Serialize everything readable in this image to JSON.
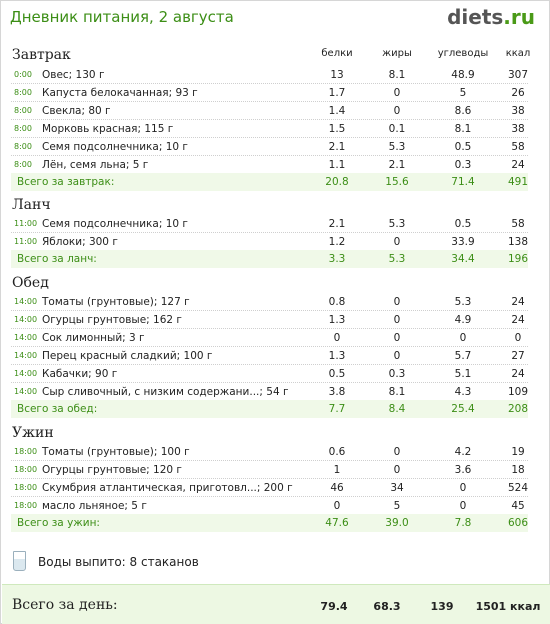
{
  "header": {
    "title": "Дневник питания, 2 августа",
    "logo_main": "diets",
    "logo_tld": ".ru"
  },
  "columns": {
    "protein": "белки",
    "fat": "жиры",
    "carbs": "углеводы",
    "kcal": "ккал"
  },
  "breakfast": {
    "title": "Завтрак",
    "items": [
      {
        "time": "0:00",
        "name": "Овес; 130 г",
        "protein": "13",
        "fat": "8.1",
        "carbs": "48.9",
        "kcal": "307"
      },
      {
        "time": "8:00",
        "name": "Капуста белокачанная; 93 г",
        "protein": "1.7",
        "fat": "0",
        "carbs": "5",
        "kcal": "26"
      },
      {
        "time": "8:00",
        "name": "Свекла; 80 г",
        "protein": "1.4",
        "fat": "0",
        "carbs": "8.6",
        "kcal": "38"
      },
      {
        "time": "8:00",
        "name": "Морковь красная; 115 г",
        "protein": "1.5",
        "fat": "0.1",
        "carbs": "8.1",
        "kcal": "38"
      },
      {
        "time": "8:00",
        "name": "Семя подсолнечника; 10 г",
        "protein": "2.1",
        "fat": "5.3",
        "carbs": "0.5",
        "kcal": "58"
      },
      {
        "time": "8:00",
        "name": "Лён, семя льна; 5 г",
        "protein": "1.1",
        "fat": "2.1",
        "carbs": "0.3",
        "kcal": "24"
      }
    ],
    "total": {
      "label": "Всего за завтрак:",
      "protein": "20.8",
      "fat": "15.6",
      "carbs": "71.4",
      "kcal": "491"
    }
  },
  "lunch": {
    "title": "Ланч",
    "items": [
      {
        "time": "11:00",
        "name": "Семя подсолнечника; 10 г",
        "protein": "2.1",
        "fat": "5.3",
        "carbs": "0.5",
        "kcal": "58"
      },
      {
        "time": "11:00",
        "name": "Яблоки; 300 г",
        "protein": "1.2",
        "fat": "0",
        "carbs": "33.9",
        "kcal": "138"
      }
    ],
    "total": {
      "label": "Всего за ланч:",
      "protein": "3.3",
      "fat": "5.3",
      "carbs": "34.4",
      "kcal": "196"
    }
  },
  "dinner": {
    "title": "Обед",
    "items": [
      {
        "time": "14:00",
        "name": "Томаты (грунтовые); 127 г",
        "protein": "0.8",
        "fat": "0",
        "carbs": "5.3",
        "kcal": "24"
      },
      {
        "time": "14:00",
        "name": "Огурцы грунтовые; 162 г",
        "protein": "1.3",
        "fat": "0",
        "carbs": "4.9",
        "kcal": "24"
      },
      {
        "time": "14:00",
        "name": "Сок лимонный; 3 г",
        "protein": "0",
        "fat": "0",
        "carbs": "0",
        "kcal": "0"
      },
      {
        "time": "14:00",
        "name": "Перец красный сладкий; 100 г",
        "protein": "1.3",
        "fat": "0",
        "carbs": "5.7",
        "kcal": "27"
      },
      {
        "time": "14:00",
        "name": "Кабачки; 90 г",
        "protein": "0.5",
        "fat": "0.3",
        "carbs": "5.1",
        "kcal": "24"
      },
      {
        "time": "14:00",
        "name": "Сыр сливочный, с низким содержани...; 54 г",
        "protein": "3.8",
        "fat": "8.1",
        "carbs": "4.3",
        "kcal": "109"
      }
    ],
    "total": {
      "label": "Всего за обед:",
      "protein": "7.7",
      "fat": "8.4",
      "carbs": "25.4",
      "kcal": "208"
    }
  },
  "supper": {
    "title": "Ужин",
    "items": [
      {
        "time": "18:00",
        "name": "Томаты (грунтовые); 100 г",
        "protein": "0.6",
        "fat": "0",
        "carbs": "4.2",
        "kcal": "19"
      },
      {
        "time": "18:00",
        "name": "Огурцы грунтовые; 120 г",
        "protein": "1",
        "fat": "0",
        "carbs": "3.6",
        "kcal": "18"
      },
      {
        "time": "18:00",
        "name": "Скумбрия атлантическая, приготовл...; 200 г",
        "protein": "46",
        "fat": "34",
        "carbs": "0",
        "kcal": "524"
      },
      {
        "time": "18:00",
        "name": "масло льняное; 5 г",
        "protein": "0",
        "fat": "5",
        "carbs": "0",
        "kcal": "45"
      }
    ],
    "total": {
      "label": "Всего за ужин:",
      "protein": "47.6",
      "fat": "39.0",
      "carbs": "7.8",
      "kcal": "606"
    }
  },
  "water": {
    "label": "Воды выпито: 8 стаканов",
    "icon": "water-glass-icon"
  },
  "day_total": {
    "label": "Всего за день:",
    "protein": "79.4",
    "fat": "68.3",
    "carbs": "139",
    "kcal": "1501 ккал"
  },
  "colors": {
    "accent_green": "#3c8e16",
    "total_bg": "#f0f9e8"
  }
}
